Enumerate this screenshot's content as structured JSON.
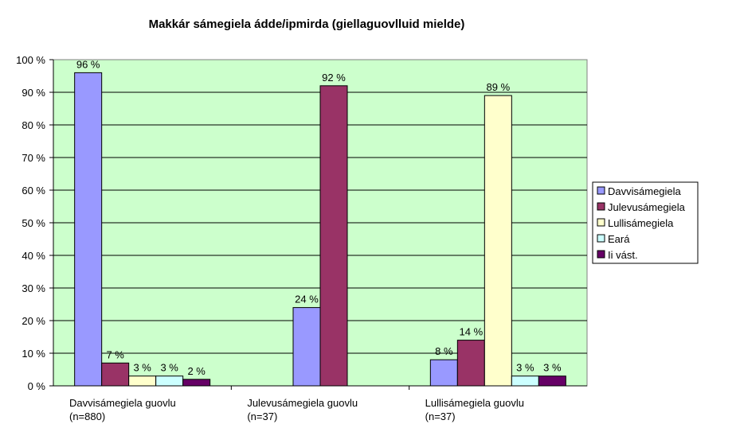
{
  "chart_data": {
    "type": "bar",
    "title": "Makkár sámegiela ádde/ipmirda (giellaguovlluid mielde)",
    "xlabel": "",
    "ylabel": "",
    "ylim": [
      0,
      100
    ],
    "yticks": [
      "0 %",
      "10 %",
      "20 %",
      "30 %",
      "40 %",
      "50 %",
      "60 %",
      "70 %",
      "80 %",
      "90 %",
      "100 %"
    ],
    "grid": true,
    "legend_position": "right",
    "plot_background": "#ccffcc",
    "categories": [
      {
        "line1": "Davvisámegiela guovlu",
        "line2": "(n=880)"
      },
      {
        "line1": "Julevusámegiela guovlu",
        "line2": "(n=37)"
      },
      {
        "line1": "Lullisámegiela guovlu",
        "line2": "(n=37)"
      }
    ],
    "series": [
      {
        "name": "Davvisámegiela",
        "color": "#9999ff",
        "values": [
          96,
          24,
          8
        ],
        "labels": [
          "96 %",
          "24 %",
          "8 %"
        ]
      },
      {
        "name": "Julevusámegiela",
        "color": "#993366",
        "values": [
          7,
          92,
          14
        ],
        "labels": [
          "7 %",
          "92 %",
          "14 %"
        ]
      },
      {
        "name": "Lullisámegiela",
        "color": "#ffffcc",
        "values": [
          3,
          null,
          89
        ],
        "labels": [
          "3 %",
          "",
          "89 %"
        ]
      },
      {
        "name": "Eará",
        "color": "#ccffff",
        "values": [
          3,
          null,
          3
        ],
        "labels": [
          "3 %",
          "",
          "3 %"
        ]
      },
      {
        "name": "Ii vást.",
        "color": "#660066",
        "values": [
          2,
          null,
          3
        ],
        "labels": [
          "2 %",
          "",
          "3 %"
        ]
      }
    ]
  }
}
